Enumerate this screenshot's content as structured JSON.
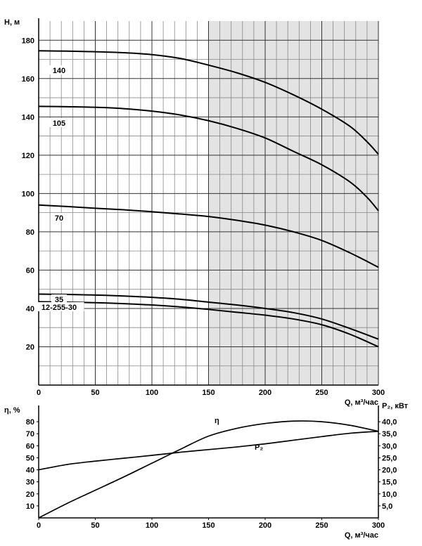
{
  "chart_data": [
    {
      "type": "line",
      "xlabel": "Q, м³/час",
      "ylabel": "H, м",
      "xlim": [
        0,
        300
      ],
      "ylim": [
        0,
        190
      ],
      "xticks": [
        0,
        50,
        100,
        150,
        200,
        250,
        300
      ],
      "yticks": [
        20,
        40,
        60,
        80,
        100,
        120,
        140,
        160,
        180
      ],
      "grid": true,
      "shaded_region": {
        "x_from": 150,
        "x_to": 300
      },
      "series": [
        {
          "name": "140",
          "x": [
            0,
            25,
            50,
            75,
            100,
            125,
            150,
            175,
            200,
            225,
            250,
            275,
            290,
            300
          ],
          "y": [
            174.5,
            174.3,
            174,
            173.5,
            172.5,
            170.5,
            167,
            163,
            158,
            151.5,
            144,
            135,
            127,
            120.5
          ]
        },
        {
          "name": "105",
          "x": [
            0,
            25,
            50,
            75,
            100,
            125,
            150,
            175,
            200,
            225,
            250,
            275,
            290,
            300
          ],
          "y": [
            145.5,
            145.3,
            145,
            144.3,
            143,
            141,
            138,
            134,
            129,
            122,
            115,
            106,
            98,
            91
          ]
        },
        {
          "name": "70",
          "x": [
            0,
            25,
            50,
            75,
            100,
            125,
            150,
            175,
            200,
            225,
            250,
            275,
            300
          ],
          "y": [
            94,
            93.2,
            92.3,
            91.5,
            90.5,
            89.3,
            88,
            86,
            83.5,
            80,
            75.5,
            69,
            61.5
          ]
        },
        {
          "name": "35",
          "x": [
            0,
            25,
            50,
            75,
            100,
            125,
            150,
            175,
            200,
            225,
            250,
            275,
            300
          ],
          "y": [
            47.5,
            47.3,
            47,
            46.5,
            45.8,
            44.8,
            43.3,
            41.8,
            40,
            37.8,
            34.5,
            29.5,
            24
          ]
        },
        {
          "name": "12-255-30",
          "x": [
            0,
            25,
            50,
            75,
            100,
            125,
            150,
            175,
            200,
            225,
            250,
            275,
            300
          ],
          "y": [
            43.5,
            43.3,
            43,
            42.5,
            41.8,
            40.8,
            39.5,
            38,
            36.5,
            34.5,
            31.5,
            26.5,
            20
          ]
        }
      ]
    },
    {
      "type": "line",
      "xlabel": "Q, м³/час",
      "ylabel_left": "η, %",
      "ylabel_right": "P₂, кВт",
      "xlim": [
        0,
        300
      ],
      "ylim_left": [
        0,
        90
      ],
      "ylim_right": [
        0,
        45
      ],
      "xticks": [
        0,
        50,
        100,
        150,
        200,
        250,
        300
      ],
      "yticks_left": [
        10,
        20,
        30,
        40,
        50,
        60,
        70,
        80
      ],
      "yticks_right": [
        "5,0",
        "10,0",
        "15,0",
        "20,0",
        "25,0",
        "30,0",
        "35,0",
        "40,0"
      ],
      "grid": false,
      "series": [
        {
          "name": "η",
          "axis": "left",
          "x": [
            0,
            25,
            50,
            75,
            100,
            125,
            150,
            175,
            200,
            225,
            250,
            275,
            300
          ],
          "y": [
            0,
            12,
            23,
            34,
            45.5,
            57,
            68,
            74.5,
            78.5,
            80.5,
            80,
            77,
            72
          ]
        },
        {
          "name": "P₂",
          "axis": "right",
          "x": [
            0,
            25,
            50,
            75,
            100,
            125,
            150,
            175,
            200,
            225,
            250,
            275,
            300
          ],
          "y": [
            20,
            22.2,
            23.6,
            24.8,
            26,
            27.3,
            28.4,
            29.5,
            30.8,
            32.3,
            33.8,
            35.2,
            36
          ]
        }
      ]
    }
  ]
}
